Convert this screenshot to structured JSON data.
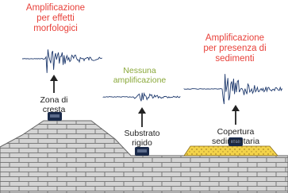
{
  "labels": [
    {
      "lines": [
        "Amplificazione",
        "per effetti",
        "morfologici"
      ]
    },
    {
      "lines": [
        "Nessuna",
        "amplificazione"
      ]
    },
    {
      "lines": [
        "Amplificazione",
        "per presenza di",
        "sedimenti"
      ]
    }
  ],
  "sites": [
    {
      "lines": [
        "Zona di",
        "cresta"
      ]
    },
    {
      "lines": [
        "Substrato",
        "rigido"
      ]
    },
    {
      "lines": [
        "Copertura",
        "sedimentaria"
      ]
    }
  ]
}
